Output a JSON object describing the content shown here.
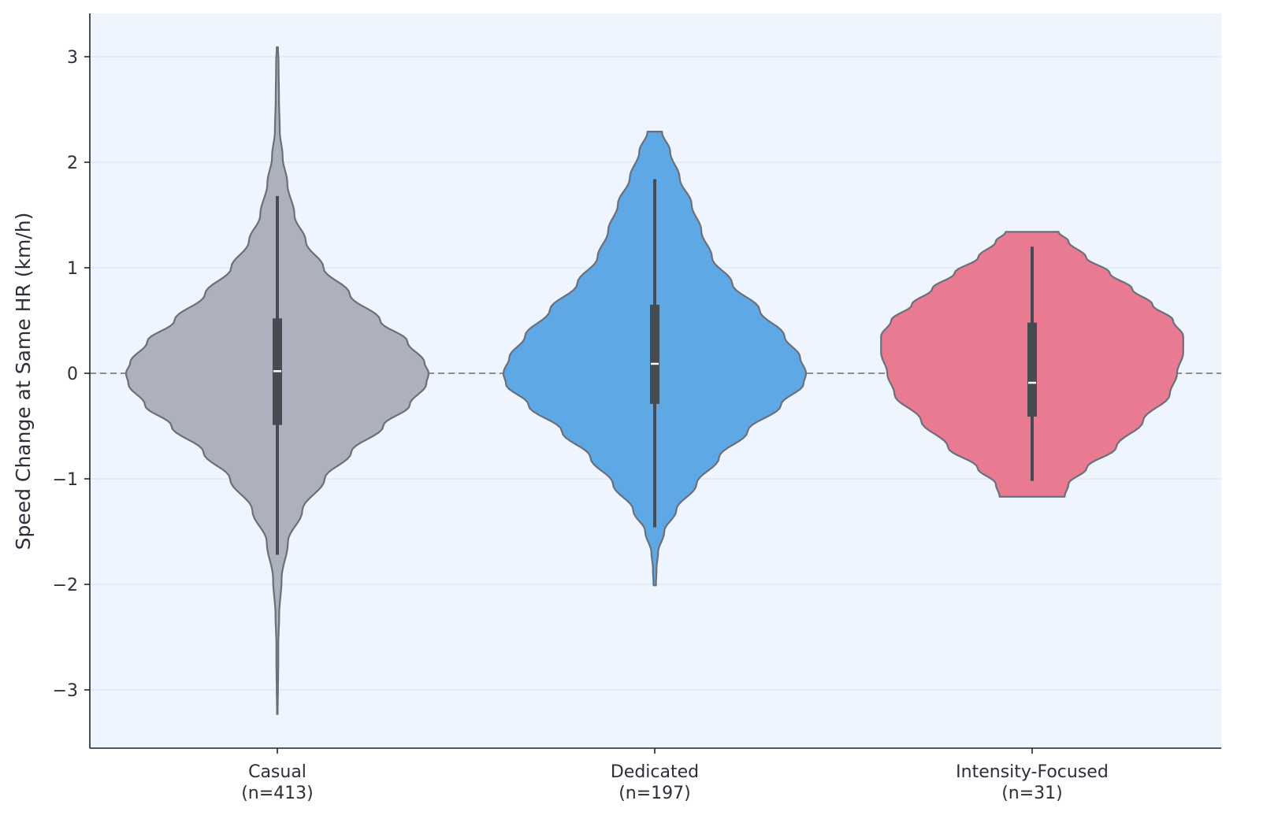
{
  "chart_data": {
    "type": "violin",
    "title": "",
    "xlabel": "",
    "ylabel": "Speed Change at Same HR (km/h)",
    "ylim": [
      -3.55,
      3.42
    ],
    "yticks": [
      -3,
      -2,
      -1,
      0,
      1,
      2,
      3
    ],
    "ytick_labels": [
      "−3",
      "−2",
      "−1",
      "0",
      "1",
      "2",
      "3"
    ],
    "grid": "horizontal",
    "reference_line": {
      "y": 0,
      "style": "dashed"
    },
    "colors": {
      "background": "#eef5fe",
      "grid": "#d6e6f7",
      "violin_edge": "#6b6f7a",
      "box": "#474a51",
      "median": "#ffffff",
      "reference_line": "#8a8d94"
    },
    "categories": [
      {
        "label_line1": "Casual",
        "label_line2": "(n=413)",
        "color": "#adb1bd",
        "min": -1.72,
        "q1": -0.49,
        "median": 0.02,
        "q3": 0.52,
        "max": 1.68,
        "range": [
          -3.23,
          3.09
        ],
        "density_profile": [
          [
            3.09,
            0.004
          ],
          [
            2.95,
            0.008
          ],
          [
            2.6,
            0.011
          ],
          [
            2.3,
            0.016
          ],
          [
            2.05,
            0.035
          ],
          [
            1.8,
            0.066
          ],
          [
            1.5,
            0.113
          ],
          [
            1.25,
            0.188
          ],
          [
            1.0,
            0.305
          ],
          [
            0.75,
            0.478
          ],
          [
            0.5,
            0.68
          ],
          [
            0.3,
            0.86
          ],
          [
            0.1,
            0.973
          ],
          [
            0.0,
            1.0
          ],
          [
            -0.1,
            0.985
          ],
          [
            -0.3,
            0.875
          ],
          [
            -0.5,
            0.7
          ],
          [
            -0.75,
            0.488
          ],
          [
            -1.0,
            0.313
          ],
          [
            -1.3,
            0.165
          ],
          [
            -1.6,
            0.07
          ],
          [
            -1.95,
            0.028
          ],
          [
            -2.3,
            0.012
          ],
          [
            -2.6,
            0.006
          ],
          [
            -2.8,
            0.006
          ],
          [
            -3.0,
            0.004
          ],
          [
            -3.23,
            0.002
          ]
        ]
      },
      {
        "label_line1": "Dedicated",
        "label_line2": "(n=197)",
        "color": "#5ea8e6",
        "min": -1.46,
        "q1": -0.29,
        "median": 0.09,
        "q3": 0.65,
        "max": 1.84,
        "range": [
          -2.01,
          2.29
        ],
        "density_profile": [
          [
            2.29,
            0.048
          ],
          [
            2.1,
            0.102
          ],
          [
            1.85,
            0.165
          ],
          [
            1.6,
            0.244
          ],
          [
            1.35,
            0.308
          ],
          [
            1.1,
            0.378
          ],
          [
            0.85,
            0.512
          ],
          [
            0.6,
            0.693
          ],
          [
            0.35,
            0.858
          ],
          [
            0.15,
            0.961
          ],
          [
            0.0,
            1.0
          ],
          [
            -0.1,
            0.984
          ],
          [
            -0.3,
            0.835
          ],
          [
            -0.55,
            0.614
          ],
          [
            -0.8,
            0.425
          ],
          [
            -1.05,
            0.276
          ],
          [
            -1.3,
            0.142
          ],
          [
            -1.5,
            0.063
          ],
          [
            -1.7,
            0.022
          ],
          [
            -1.85,
            0.012
          ],
          [
            -2.01,
            0.008
          ]
        ]
      },
      {
        "label_line1": "Intensity-Focused",
        "label_line2": "(n=31)",
        "color": "#e87a91",
        "min": -1.02,
        "q1": -0.41,
        "median": -0.09,
        "q3": 0.48,
        "max": 1.2,
        "range": [
          -1.17,
          1.34
        ],
        "density_profile": [
          [
            1.34,
            0.175
          ],
          [
            1.25,
            0.24
          ],
          [
            1.1,
            0.356
          ],
          [
            0.95,
            0.513
          ],
          [
            0.8,
            0.661
          ],
          [
            0.65,
            0.796
          ],
          [
            0.5,
            0.932
          ],
          [
            0.35,
            0.999
          ],
          [
            0.2,
            0.999
          ],
          [
            0.0,
            0.958
          ],
          [
            -0.2,
            0.91
          ],
          [
            -0.45,
            0.734
          ],
          [
            -0.7,
            0.556
          ],
          [
            -0.9,
            0.36
          ],
          [
            -1.05,
            0.24
          ],
          [
            -1.17,
            0.215
          ]
        ]
      }
    ]
  }
}
